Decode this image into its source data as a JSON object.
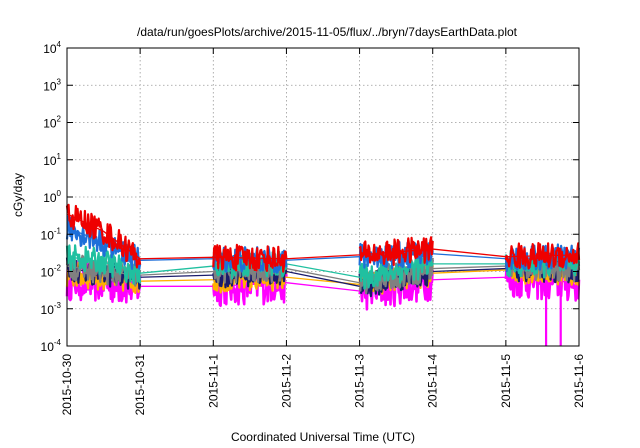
{
  "chart_data": {
    "type": "line",
    "title": "/data/run/goesPlots/archive/2015-11-05/flux/../bryn/7daysEarthData.plot",
    "xlabel": "Coordinated Universal Time (UTC)",
    "ylabel": "cGy/day",
    "yscale": "log",
    "ylim": [
      0.0001,
      10000
    ],
    "xlim": [
      "2015-10-30",
      "2015-11-06"
    ],
    "grid": true,
    "x_ticks": [
      "2015-10-30",
      "2015-10-31",
      "2015-11-1",
      "2015-11-2",
      "2015-11-3",
      "2015-11-4",
      "2015-11-5",
      "2015-11-6"
    ],
    "y_ticks": [
      {
        "base": "10",
        "exp": "-4",
        "value": 0.0001
      },
      {
        "base": "10",
        "exp": "-3",
        "value": 0.001
      },
      {
        "base": "10",
        "exp": "-2",
        "value": 0.01
      },
      {
        "base": "10",
        "exp": "-1",
        "value": 0.1
      },
      {
        "base": "10",
        "exp": "0",
        "value": 1
      },
      {
        "base": "10",
        "exp": "1",
        "value": 10
      },
      {
        "base": "10",
        "exp": "2",
        "value": 100
      },
      {
        "base": "10",
        "exp": "3",
        "value": 1000
      },
      {
        "base": "10",
        "exp": "4",
        "value": 10000
      }
    ],
    "data_segments": [
      {
        "start": 0.0,
        "end": 1.0
      },
      {
        "start": 2.0,
        "end": 3.0
      },
      {
        "start": 4.0,
        "end": 5.0
      },
      {
        "start": 6.0,
        "end": 7.0
      }
    ],
    "series": [
      {
        "color": "#ff00ff",
        "x": [
          0.0,
          0.5,
          1.0,
          2.0,
          3.0,
          4.0,
          5.0,
          6.0,
          7.0
        ],
        "y": [
          0.006,
          0.005,
          0.004,
          0.004,
          0.005,
          0.003,
          0.006,
          0.007,
          0.005
        ]
      },
      {
        "color": "#ffb000",
        "x": [
          0.0,
          0.5,
          1.0,
          2.0,
          3.0,
          4.0,
          5.0,
          6.0,
          7.0
        ],
        "y": [
          0.008,
          0.007,
          0.0055,
          0.006,
          0.007,
          0.0045,
          0.009,
          0.011,
          0.009
        ]
      },
      {
        "color": "#1b1b6b",
        "x": [
          0.0,
          0.5,
          1.0,
          2.0,
          3.0,
          4.0,
          5.0,
          6.0,
          7.0
        ],
        "y": [
          0.012,
          0.009,
          0.007,
          0.008,
          0.01,
          0.004,
          0.01,
          0.012,
          0.011
        ]
      },
      {
        "color": "#808080",
        "x": [
          0.0,
          0.5,
          1.0,
          2.0,
          3.0,
          4.0,
          5.0,
          6.0,
          7.0
        ],
        "y": [
          0.014,
          0.01,
          0.008,
          0.01,
          0.012,
          0.005,
          0.012,
          0.014,
          0.012
        ]
      },
      {
        "color": "#20c0a0",
        "x": [
          0.0,
          0.5,
          1.0,
          2.0,
          3.0,
          4.0,
          5.0,
          6.0,
          7.0
        ],
        "y": [
          0.025,
          0.018,
          0.009,
          0.014,
          0.016,
          0.007,
          0.016,
          0.016,
          0.015
        ]
      },
      {
        "color": "#1e6fd9",
        "x": [
          0.0,
          0.5,
          1.0,
          2.0,
          3.0,
          4.0,
          5.0,
          6.0,
          7.0
        ],
        "y": [
          0.15,
          0.06,
          0.02,
          0.022,
          0.02,
          0.025,
          0.03,
          0.022,
          0.025
        ]
      },
      {
        "color": "#ee0000",
        "x": [
          0.0,
          0.5,
          1.0,
          2.0,
          3.0,
          4.0,
          5.0,
          6.0,
          7.0
        ],
        "y": [
          0.35,
          0.12,
          0.022,
          0.024,
          0.022,
          0.028,
          0.04,
          0.025,
          0.028
        ]
      }
    ]
  }
}
